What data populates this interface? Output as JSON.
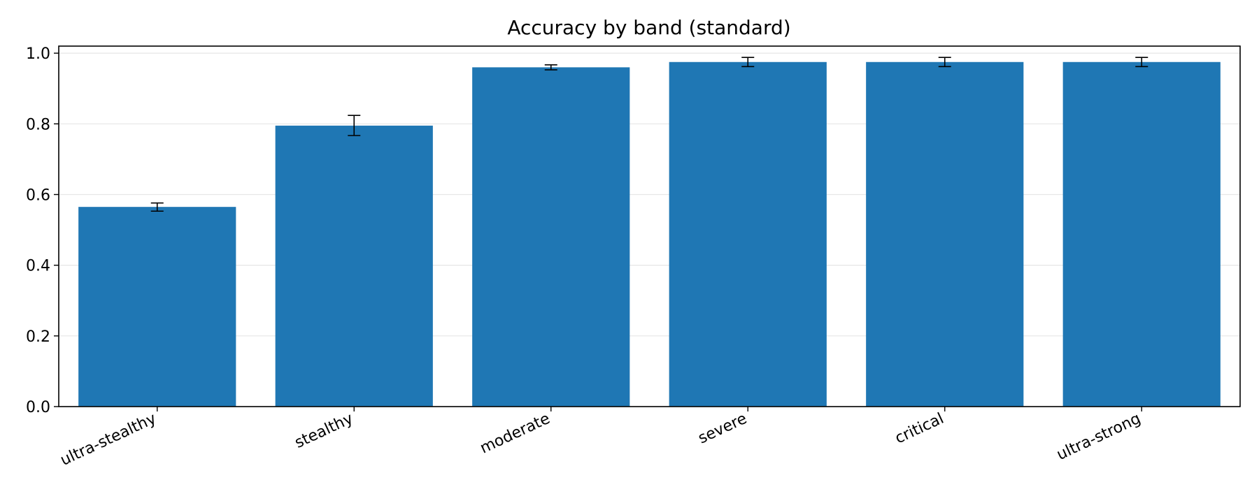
{
  "chart_data": {
    "type": "bar",
    "title": "Accuracy by band (standard)",
    "xlabel": "",
    "ylabel": "",
    "categories": [
      "ultra-stealthy",
      "stealthy",
      "moderate",
      "severe",
      "critical",
      "ultra-strong"
    ],
    "values": [
      0.565,
      0.795,
      0.96,
      0.975,
      0.975,
      0.975
    ],
    "error_low": [
      0.553,
      0.767,
      0.953,
      0.962,
      0.962,
      0.962
    ],
    "error_high": [
      0.576,
      0.824,
      0.967,
      0.988,
      0.988,
      0.988
    ],
    "ylim": [
      0.0,
      1.02
    ],
    "yticks": [
      "0.0",
      "0.2",
      "0.4",
      "0.6",
      "0.8",
      "1.0"
    ],
    "grid": "horizontal",
    "legend": "none",
    "bar_color": "#1f77b4",
    "error_color": "#000000",
    "grid_color": "#e6e6e6"
  }
}
